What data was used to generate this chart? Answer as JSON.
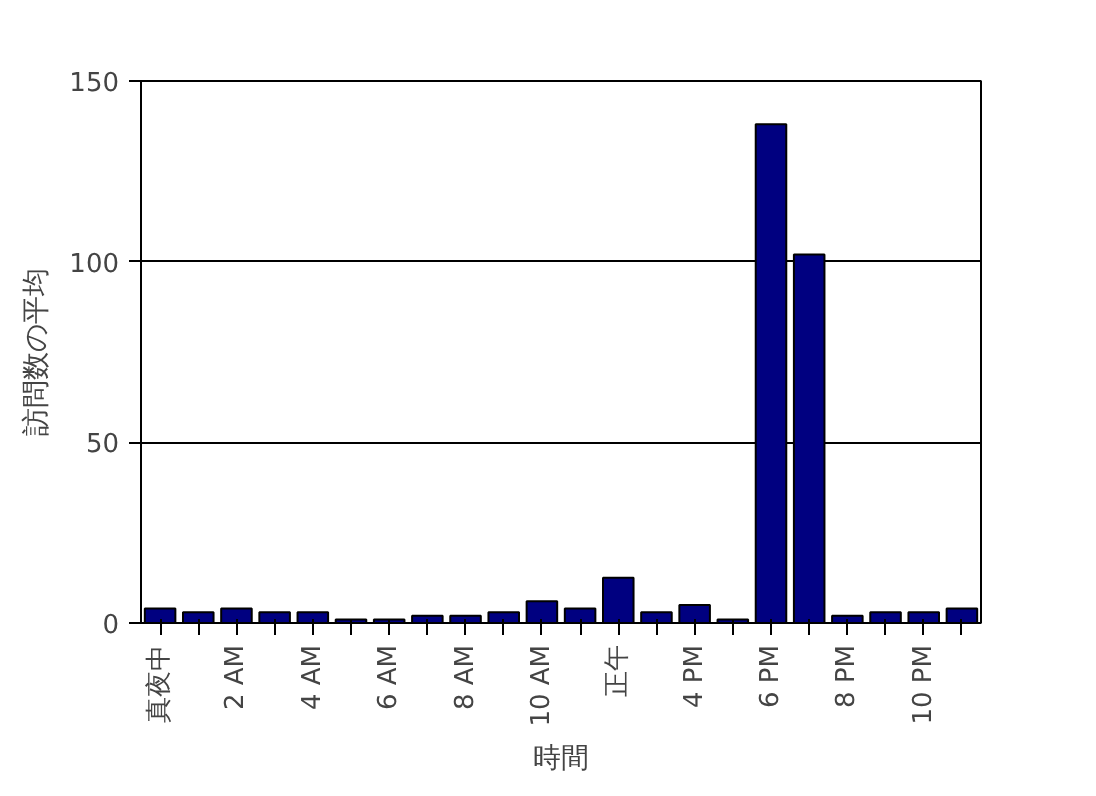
{
  "chart_data": {
    "type": "bar",
    "xlabel": "時間",
    "ylabel": "訪問数の平均",
    "categories": [
      "真夜中",
      null,
      "2 AM",
      null,
      "4 AM",
      null,
      "6 AM",
      null,
      "8 AM",
      null,
      "10 AM",
      null,
      "正午",
      null,
      "4 PM",
      null,
      "6 PM",
      null,
      "8 PM",
      null,
      "10 PM",
      null
    ],
    "values": [
      4,
      3,
      4,
      3,
      3,
      1,
      1,
      2,
      2,
      3,
      6,
      4,
      12.5,
      3,
      5,
      1,
      138,
      102,
      2,
      3,
      3,
      4
    ],
    "color": "#000080",
    "ylim": [
      0,
      150
    ],
    "yticks": [
      0,
      50,
      100,
      150
    ],
    "grid": "y"
  }
}
